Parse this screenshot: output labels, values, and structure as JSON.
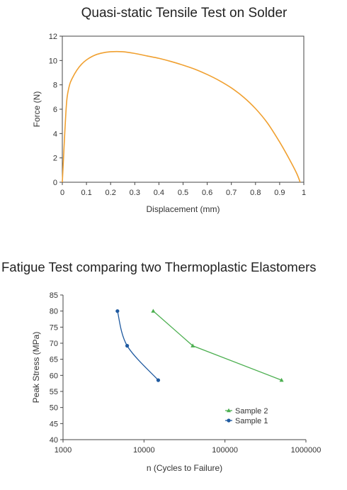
{
  "chart_data": [
    {
      "type": "line",
      "title": "Quasi-static Tensile Test on Solder",
      "xlabel": "Displacement (mm)",
      "ylabel": "Force (N)",
      "xlim": [
        0,
        1
      ],
      "ylim": [
        0,
        12
      ],
      "xticks": [
        0,
        0.1,
        0.2,
        0.3,
        0.4,
        0.5,
        0.6,
        0.7,
        0.8,
        0.9,
        1
      ],
      "yticks": [
        0,
        2,
        4,
        6,
        8,
        10,
        12
      ],
      "grid": false,
      "series": [
        {
          "color": "#F0A030",
          "x": [
            0,
            0.005,
            0.01,
            0.015,
            0.02,
            0.03,
            0.04,
            0.06,
            0.08,
            0.1,
            0.13,
            0.16,
            0.2,
            0.25,
            0.3,
            0.35,
            0.4,
            0.45,
            0.5,
            0.55,
            0.6,
            0.65,
            0.7,
            0.75,
            0.8,
            0.85,
            0.9,
            0.94,
            0.97,
            0.985
          ],
          "y": [
            0,
            2.0,
            4.0,
            5.8,
            7.0,
            8.0,
            8.5,
            9.2,
            9.7,
            10.05,
            10.4,
            10.6,
            10.72,
            10.72,
            10.58,
            10.38,
            10.18,
            9.92,
            9.62,
            9.28,
            8.85,
            8.35,
            7.75,
            7.0,
            6.05,
            4.85,
            3.3,
            1.9,
            0.75,
            0
          ]
        }
      ]
    },
    {
      "type": "scatter",
      "title": "Fatigue Test comparing two Thermoplastic Elastomers",
      "xlabel": "n (Cycles to Failure)",
      "ylabel": "Peak Stress (MPa)",
      "xscale": "log",
      "xlim": [
        1000,
        1000000
      ],
      "ylim": [
        40,
        85
      ],
      "xticks": [
        1000,
        10000,
        100000,
        1000000
      ],
      "yticks": [
        40,
        45,
        50,
        55,
        60,
        65,
        70,
        75,
        80,
        85
      ],
      "grid": false,
      "legend": "lower-right",
      "series": [
        {
          "name": "Sample 2",
          "color": "#4CAF50",
          "marker": "triangle",
          "x": [
            13000,
            40000,
            500000
          ],
          "y": [
            80,
            69.2,
            58.5
          ]
        },
        {
          "name": "Sample 1",
          "color": "#1F5AA0",
          "marker": "circle",
          "x": [
            4700,
            6200,
            15000
          ],
          "y": [
            80,
            69.2,
            58.5
          ]
        }
      ]
    }
  ]
}
